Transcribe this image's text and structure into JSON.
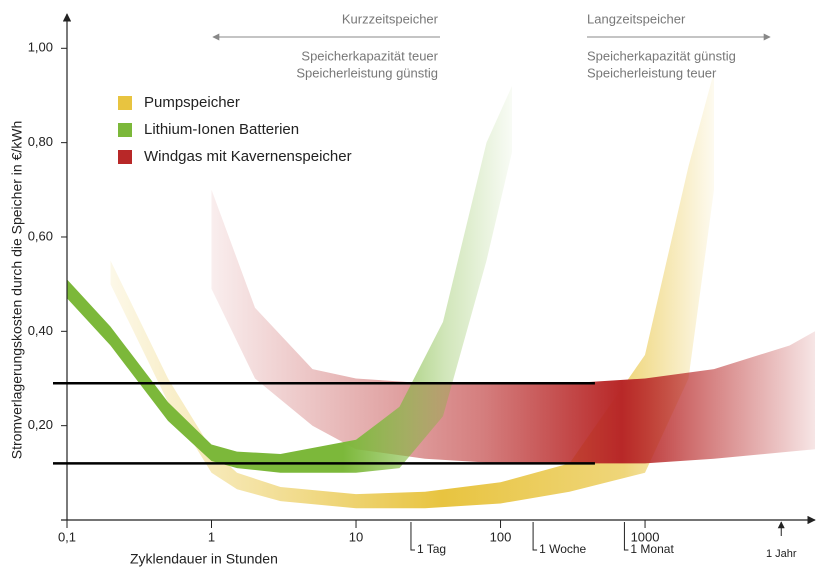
{
  "chart_data": {
    "type": "band",
    "ylabel": "Stromverlagerungskosten durch die Speicher in €/kWh",
    "xlabel": "Zyklendauer in Stunden",
    "log_x": true,
    "xlim": [
      0.1,
      15000
    ],
    "ylim": [
      0,
      1.06
    ],
    "xticks": [
      {
        "value": 0.1,
        "label": "0,1"
      },
      1,
      10,
      100,
      1000
    ],
    "yticks": [
      {
        "value": 0.2,
        "label": "0,20"
      },
      {
        "value": 0.4,
        "label": "0,40"
      },
      {
        "value": 0.6,
        "label": "0,60"
      },
      {
        "value": 0.8,
        "label": "0,80"
      },
      {
        "value": 1.0,
        "label": "1,00"
      }
    ],
    "markers": [
      {
        "value": 24,
        "label": "1 Tag"
      },
      {
        "value": 168,
        "label": "1 Woche"
      },
      {
        "value": 720,
        "label": "1 Monat"
      },
      {
        "value": 8760,
        "label": "1 Jahr"
      }
    ],
    "reference_lines": [
      {
        "value": 0.29,
        "xmax": 450
      },
      {
        "value": 0.12,
        "xmax": 450
      }
    ],
    "annotations": {
      "short": {
        "title": "Kurzzeitspeicher",
        "line1": "Speicherkapazität teuer",
        "line2": "Speicherleistung günstig"
      },
      "long": {
        "title": "Langzeitspeicher",
        "line1": "Speicherkapazität günstig",
        "line2": "Speicherleistung teuer"
      }
    },
    "series": [
      {
        "name": "Pumpspeicher",
        "color": "#e8c440",
        "x": [
          0.2,
          0.5,
          1,
          1.5,
          3,
          10,
          30,
          100,
          300,
          1000,
          2000,
          3000
        ],
        "upper": [
          0.55,
          0.3,
          0.15,
          0.1,
          0.07,
          0.055,
          0.06,
          0.08,
          0.12,
          0.35,
          0.75,
          0.95
        ],
        "lower": [
          0.5,
          0.25,
          0.1,
          0.065,
          0.04,
          0.025,
          0.025,
          0.035,
          0.06,
          0.1,
          0.3,
          0.7
        ]
      },
      {
        "name": "Lithium-Ionen Batterien",
        "color": "#7cb83a",
        "x": [
          0.1,
          0.2,
          0.5,
          1,
          1.5,
          3,
          10,
          20,
          40,
          80,
          120
        ],
        "upper": [
          0.51,
          0.41,
          0.25,
          0.16,
          0.145,
          0.14,
          0.17,
          0.24,
          0.42,
          0.8,
          0.92
        ],
        "lower": [
          0.47,
          0.37,
          0.21,
          0.125,
          0.11,
          0.1,
          0.1,
          0.11,
          0.22,
          0.55,
          0.78
        ]
      },
      {
        "name": "Windgas mit Kavernenspeicher",
        "color": "#b82828",
        "x": [
          1,
          2,
          5,
          10,
          30,
          100,
          300,
          1000,
          3000,
          10000,
          15000
        ],
        "upper": [
          0.7,
          0.45,
          0.32,
          0.3,
          0.29,
          0.29,
          0.29,
          0.3,
          0.32,
          0.37,
          0.4
        ],
        "lower": [
          0.49,
          0.3,
          0.2,
          0.15,
          0.13,
          0.12,
          0.12,
          0.12,
          0.13,
          0.145,
          0.15
        ]
      }
    ]
  }
}
